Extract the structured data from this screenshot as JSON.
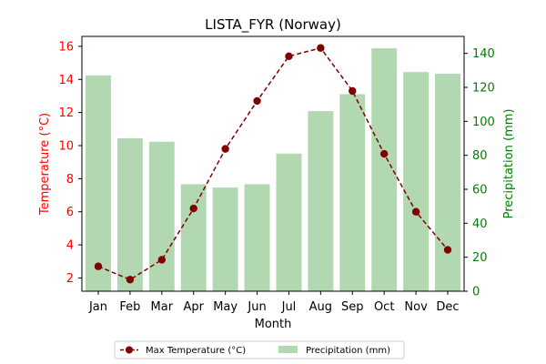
{
  "chart_data": {
    "type": "bar+line",
    "title": "LISTA_FYR (Norway)",
    "xlabel": "Month",
    "categories": [
      "Jan",
      "Feb",
      "Mar",
      "Apr",
      "May",
      "Jun",
      "Jul",
      "Aug",
      "Sep",
      "Oct",
      "Nov",
      "Dec"
    ],
    "y_left": {
      "label": "Temperature (°C)",
      "range": [
        1.2,
        16.6
      ],
      "ticks": [
        2,
        4,
        6,
        8,
        10,
        12,
        14,
        16
      ],
      "color": "#ff0000"
    },
    "y_right": {
      "label": "Precipitation (mm)",
      "range": [
        0,
        150
      ],
      "ticks": [
        0,
        20,
        40,
        60,
        80,
        100,
        120,
        140
      ],
      "color": "#008000"
    },
    "series": [
      {
        "name": "Max Temperature (°C)",
        "kind": "line",
        "axis": "left",
        "color": "#800000",
        "values": [
          2.7,
          1.9,
          3.1,
          6.2,
          9.8,
          12.7,
          15.4,
          15.9,
          13.3,
          9.5,
          6.0,
          3.7
        ]
      },
      {
        "name": "Precipitation (mm)",
        "kind": "bar",
        "axis": "right",
        "color": "#b2d8b2",
        "values": [
          127,
          90,
          88,
          63,
          61,
          63,
          81,
          106,
          116,
          143,
          129,
          128
        ]
      }
    ],
    "legend": {
      "placement": "bottom-center"
    }
  }
}
